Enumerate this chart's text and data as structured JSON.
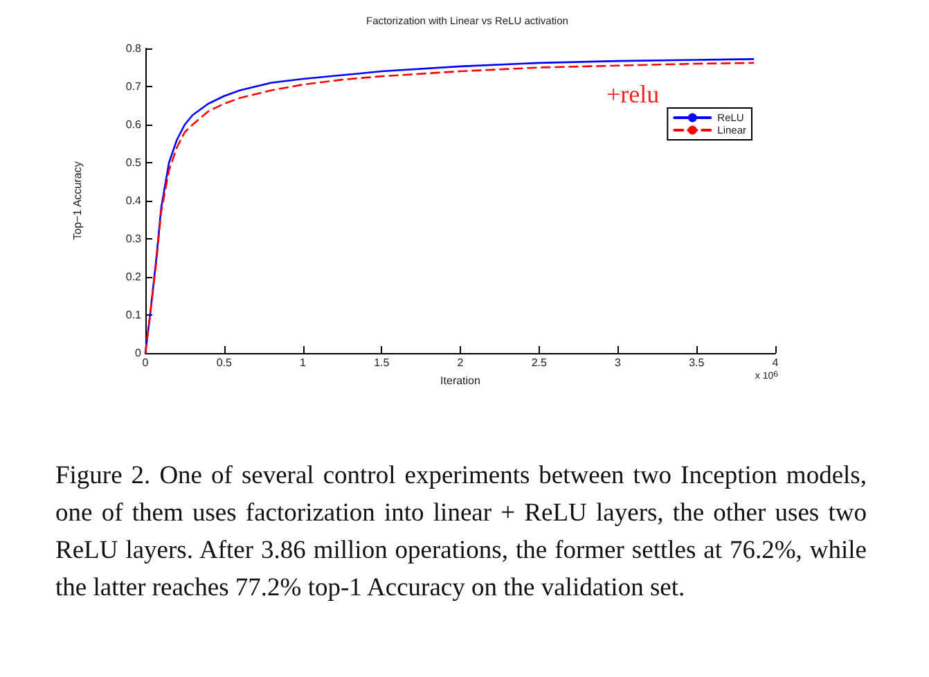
{
  "chart_data": {
    "type": "line",
    "title": "Factorization with Linear vs ReLU activation",
    "xlabel": "Iteration",
    "ylabel": "Top−1 Accuracy",
    "xlim": [
      0,
      4
    ],
    "xticks": [
      0,
      0.5,
      1,
      1.5,
      2,
      2.5,
      3,
      3.5,
      4
    ],
    "ylim": [
      0,
      0.8
    ],
    "yticks": [
      0,
      0.1,
      0.2,
      0.3,
      0.4,
      0.5,
      0.6,
      0.7,
      0.8
    ],
    "grid": false,
    "legend": "right",
    "marker": "none",
    "x": [
      0,
      0.03,
      0.07,
      0.1,
      0.15,
      0.2,
      0.25,
      0.3,
      0.4,
      0.5,
      0.6,
      0.7,
      0.8,
      1.0,
      1.25,
      1.5,
      2,
      2.5,
      3,
      3.5,
      3.86
    ],
    "series": [
      {
        "name": "ReLU",
        "color": "#0000ff",
        "line_style": "solid",
        "values": [
          0,
          0.1,
          0.25,
          0.38,
          0.5,
          0.56,
          0.6,
          0.625,
          0.655,
          0.675,
          0.69,
          0.7,
          0.71,
          0.72,
          0.73,
          0.74,
          0.753,
          0.762,
          0.767,
          0.77,
          0.772
        ]
      },
      {
        "name": "Linear",
        "color": "#ff0000",
        "line_style": "dashed",
        "values": [
          0,
          0.1,
          0.24,
          0.37,
          0.48,
          0.54,
          0.58,
          0.6,
          0.635,
          0.655,
          0.67,
          0.68,
          0.69,
          0.705,
          0.718,
          0.727,
          0.74,
          0.75,
          0.755,
          0.76,
          0.762
        ]
      }
    ],
    "annotations": [
      "x 10$^{6}$",
      "+relu",
      "Figure 2. One of several control experiments between two Inception models, one of them uses factorization into linear + ReLU layers, the other uses two ReLU layers. After 3.86 million operations, the former settles at 76.2%, while the latter reaches 77.2% top-1 Accuracy on the validation set."
    ]
  }
}
